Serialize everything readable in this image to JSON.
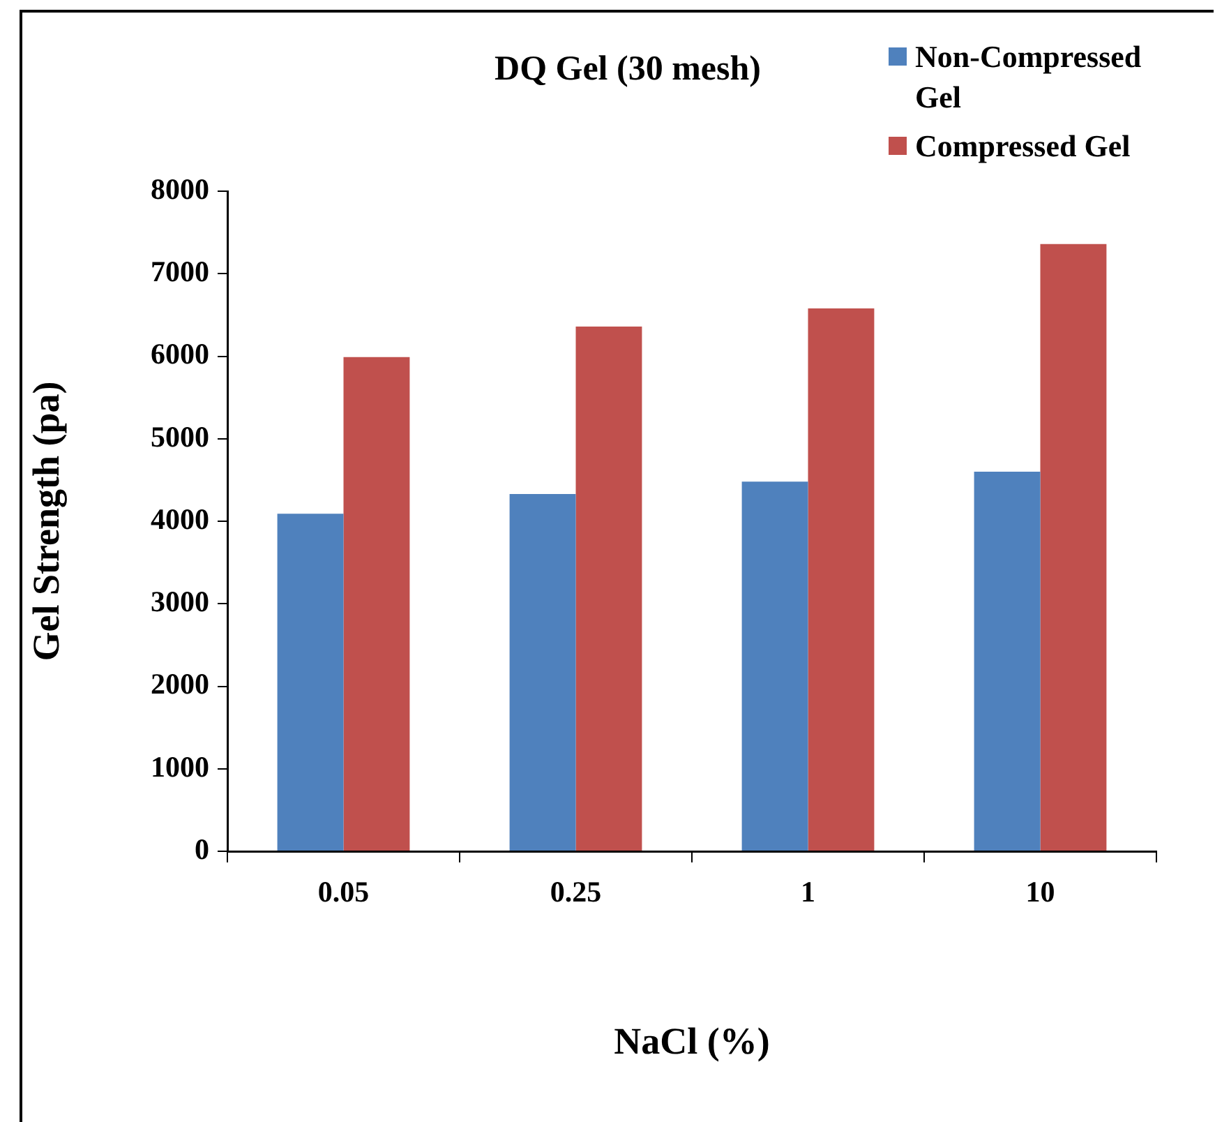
{
  "chart_data": {
    "type": "bar",
    "title": "DQ Gel (30 mesh)",
    "xlabel": "NaCl (%)",
    "ylabel": "Gel Strength (pa)",
    "categories": [
      "0.05",
      "0.25",
      "1",
      "10"
    ],
    "series": [
      {
        "name": "Non-Compressed Gel",
        "color": "#4f81bd",
        "values": [
          4090,
          4330,
          4480,
          4600
        ]
      },
      {
        "name": "Compressed Gel",
        "color": "#c0504d",
        "values": [
          5990,
          6360,
          6580,
          7360
        ]
      }
    ],
    "ylim": [
      0,
      8000
    ],
    "yticks": [
      0,
      1000,
      2000,
      3000,
      4000,
      5000,
      6000,
      7000,
      8000
    ],
    "legend": "top right"
  }
}
